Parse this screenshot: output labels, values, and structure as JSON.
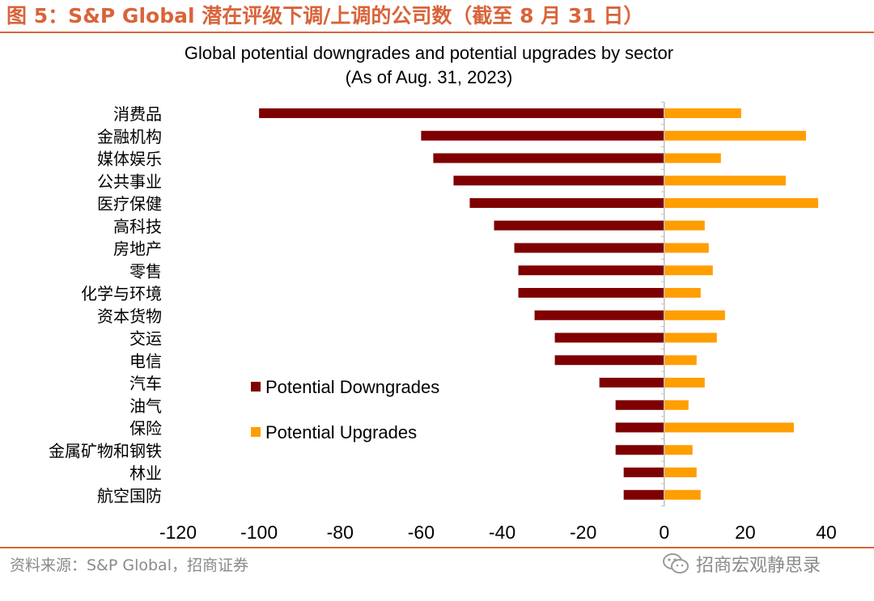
{
  "figure": {
    "title": "图 5：S&P Global 潜在评级下调/上调的公司数（截至 8 月 31 日）",
    "source": "资料来源：S&P Global，招商证券",
    "watermark": "招商宏观静思录"
  },
  "colors": {
    "downgrade": "#7f0000",
    "upgrade": "#ff9e00",
    "accent": "#d9643a"
  },
  "chart_data": {
    "type": "bar",
    "orientation": "horizontal",
    "title": "Global potential downgrades and potential upgrades by sector",
    "subtitle": "(As of Aug. 31, 2023)",
    "categories": [
      "消费品",
      "金融机构",
      "媒体娱乐",
      "公共事业",
      "医疗保健",
      "高科技",
      "房地产",
      "零售",
      "化学与环境",
      "资本货物",
      "交运",
      "电信",
      "汽车",
      "油气",
      "保险",
      "金属矿物和钢铁",
      "林业",
      "航空国防"
    ],
    "series": [
      {
        "name": "Potential Downgrades",
        "values": [
          -100,
          -60,
          -57,
          -52,
          -48,
          -42,
          -37,
          -36,
          -36,
          -32,
          -27,
          -27,
          -16,
          -12,
          -12,
          -12,
          -10,
          -10
        ]
      },
      {
        "name": "Potential Upgrades",
        "values": [
          19,
          35,
          14,
          30,
          38,
          10,
          11,
          12,
          9,
          15,
          13,
          8,
          10,
          6,
          32,
          7,
          8,
          9
        ]
      }
    ],
    "xlim": [
      -120,
      40
    ],
    "xticks": [
      -120,
      -100,
      -80,
      -60,
      -40,
      -20,
      0,
      20,
      40
    ],
    "xtick_labels": [
      "-120",
      "-100",
      "-80",
      "-60",
      "-40",
      "-20",
      "0",
      "20",
      "40"
    ],
    "legend": [
      "Potential Downgrades",
      "Potential Upgrades"
    ],
    "legend_position": "center-left",
    "grid": false
  }
}
